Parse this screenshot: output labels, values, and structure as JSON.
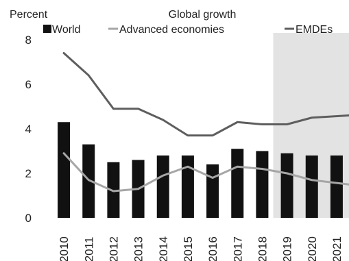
{
  "chart_data": {
    "type": "bar",
    "title": "Global growth",
    "ylabel": "Percent",
    "xlabel": "",
    "ylim": [
      0,
      8
    ],
    "yticks": [
      0,
      2,
      4,
      6,
      8
    ],
    "grid": false,
    "legend_position": "top",
    "categories": [
      "2010",
      "2011",
      "2012",
      "2013",
      "2014",
      "2015",
      "2016",
      "2017",
      "2018",
      "2019",
      "2020",
      "2021"
    ],
    "forecast_shading": {
      "from": "2019",
      "to": "2021",
      "color": "#e3e3e3"
    },
    "series": [
      {
        "name": "World",
        "kind": "bar",
        "color": "#111111",
        "values": [
          4.3,
          3.3,
          2.5,
          2.6,
          2.8,
          2.8,
          2.4,
          3.1,
          3.0,
          2.9,
          2.8,
          2.8
        ]
      },
      {
        "name": "Advanced economies",
        "kind": "line",
        "color": "#a6a6a6",
        "values": [
          2.9,
          1.7,
          1.2,
          1.3,
          1.9,
          2.3,
          1.8,
          2.3,
          2.2,
          2.0,
          1.7,
          1.5
        ]
      },
      {
        "name": "EMDEs",
        "kind": "line",
        "color": "#5e5e5e",
        "values": [
          7.4,
          6.4,
          4.9,
          4.9,
          4.4,
          3.7,
          3.7,
          4.3,
          4.2,
          4.2,
          4.5,
          4.6
        ]
      }
    ]
  }
}
